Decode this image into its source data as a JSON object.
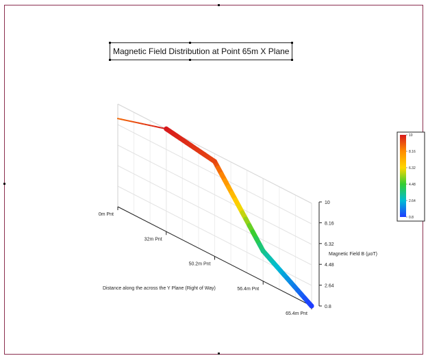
{
  "chart_data": {
    "type": "line",
    "title": "Magnetic Field Distribution at Point 65m X Plane",
    "xlabel": "Distance along the across the Y Plane (Right of Way)",
    "zlabel": "Magnetic Field B (µoT)",
    "categories": [
      "0m Pnt",
      "32m Pnt",
      "50.2m Pnt",
      "56.4m Pnt",
      "65.4m Pnt"
    ],
    "values": [
      8.7,
      10,
      9.3,
      3.5,
      0.8
    ],
    "zticks": [
      "10",
      "8.16",
      "6.32",
      "4.48",
      "2.64",
      "0.8"
    ],
    "zlim": [
      0.8,
      10
    ],
    "colorbar": {
      "ticks": [
        "10",
        "8.16",
        "6.32",
        "4.48",
        "2.64",
        "0.8"
      ],
      "colors": [
        "#d7191c",
        "#ff8c00",
        "#ffd700",
        "#32cd32",
        "#00bcd4",
        "#1e3cff"
      ]
    },
    "grid": true,
    "legend_position": "right"
  }
}
